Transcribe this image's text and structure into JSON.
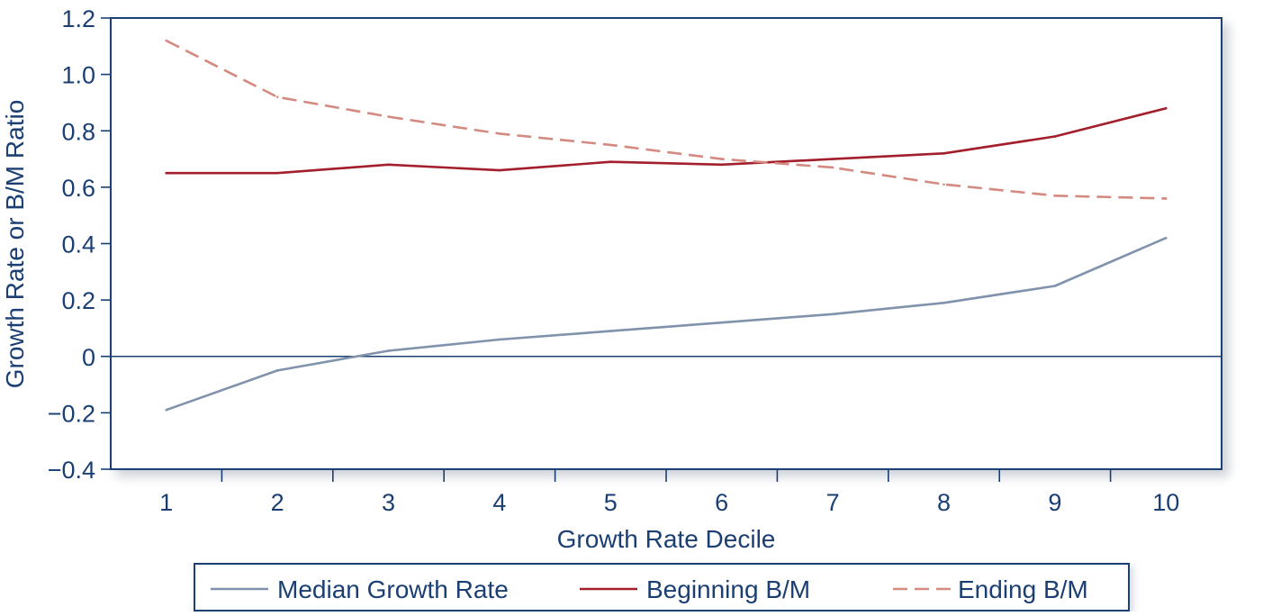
{
  "chart_data": {
    "type": "line",
    "title": "",
    "xlabel": "Growth Rate Decile",
    "ylabel": "Growth Rate or B/M Ratio",
    "x": [
      1,
      2,
      3,
      4,
      5,
      6,
      7,
      8,
      9,
      10
    ],
    "xlim": [
      0.5,
      10.5
    ],
    "ylim": [
      -0.4,
      1.2
    ],
    "yticks": [
      -0.4,
      -0.2,
      0,
      0.2,
      0.4,
      0.6,
      0.8,
      1.0,
      1.2
    ],
    "ytick_labels": [
      "−0.4",
      "−0.2",
      "0",
      "0.2",
      "0.4",
      "0.6",
      "0.8",
      "1.0",
      "1.2"
    ],
    "xtick_labels": [
      "1",
      "2",
      "3",
      "4",
      "5",
      "6",
      "7",
      "8",
      "9",
      "10"
    ],
    "grid": false,
    "legend_position": "bottom",
    "series": [
      {
        "name": "Median Growth Rate",
        "values": [
          -0.19,
          -0.05,
          0.02,
          0.06,
          0.09,
          0.12,
          0.15,
          0.19,
          0.25,
          0.42
        ],
        "color": "#8192ad",
        "style": "solid"
      },
      {
        "name": "Beginning B/M",
        "values": [
          0.65,
          0.65,
          0.68,
          0.66,
          0.69,
          0.68,
          0.7,
          0.72,
          0.78,
          0.88
        ],
        "color": "#a31f2c",
        "style": "solid"
      },
      {
        "name": "Ending B/M",
        "values": [
          1.12,
          0.92,
          0.85,
          0.79,
          0.75,
          0.7,
          0.67,
          0.61,
          0.57,
          0.56
        ],
        "color": "#d48a80",
        "style": "dashed"
      }
    ]
  },
  "colors": {
    "axis": "#1b3f73",
    "text": "#1b3f73",
    "frame_shadow": "#c5cad3"
  }
}
